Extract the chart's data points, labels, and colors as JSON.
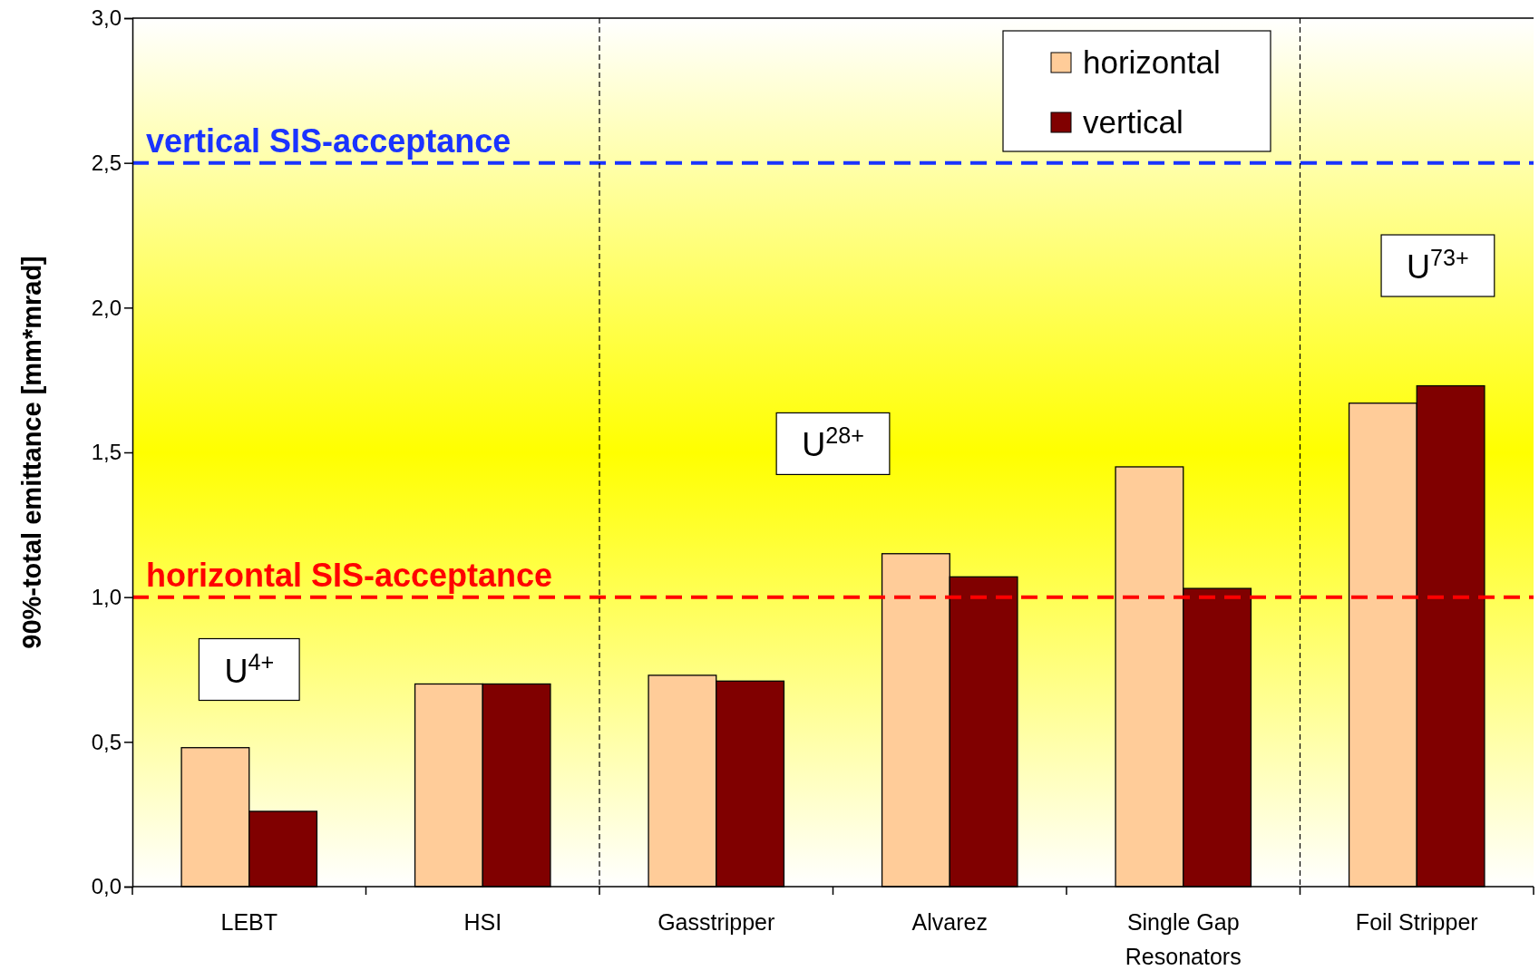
{
  "chart_data": {
    "type": "bar",
    "ylabel": "90%-total emittance [mm*mrad]",
    "categories": [
      "LEBT",
      "HSI",
      "Gasstripper",
      "Alvarez",
      "Single Gap Resonators",
      "Foil Stripper"
    ],
    "series": [
      {
        "name": "horizontal",
        "color": "#ffcc99",
        "values": [
          0.48,
          0.7,
          0.73,
          1.15,
          1.45,
          1.67
        ]
      },
      {
        "name": "vertical",
        "color": "#800000",
        "values": [
          0.26,
          0.7,
          0.71,
          1.07,
          1.03,
          1.73
        ]
      }
    ],
    "ylim": [
      0,
      3
    ],
    "yticks": [
      {
        "value": 0,
        "label": "0,0"
      },
      {
        "value": 0.5,
        "label": "0,5"
      },
      {
        "value": 1,
        "label": "1,0"
      },
      {
        "value": 1.5,
        "label": "1,5"
      },
      {
        "value": 2,
        "label": "2,0"
      },
      {
        "value": 2.5,
        "label": "2,5"
      },
      {
        "value": 3,
        "label": "3,0"
      }
    ],
    "ref_lines": [
      {
        "axis": "y",
        "value": 2.5,
        "label": "vertical SIS-acceptance",
        "color": "#1a33ff",
        "line_style": "dashed"
      },
      {
        "axis": "y",
        "value": 1.0,
        "label": "horizontal SIS-acceptance",
        "color": "#ff0000",
        "line_style": "dashed"
      }
    ],
    "annotations": [
      "U$^{4+}$",
      "U$^{28+}$",
      "U$^{73+}$"
    ],
    "legend": "top right",
    "grid": false
  }
}
